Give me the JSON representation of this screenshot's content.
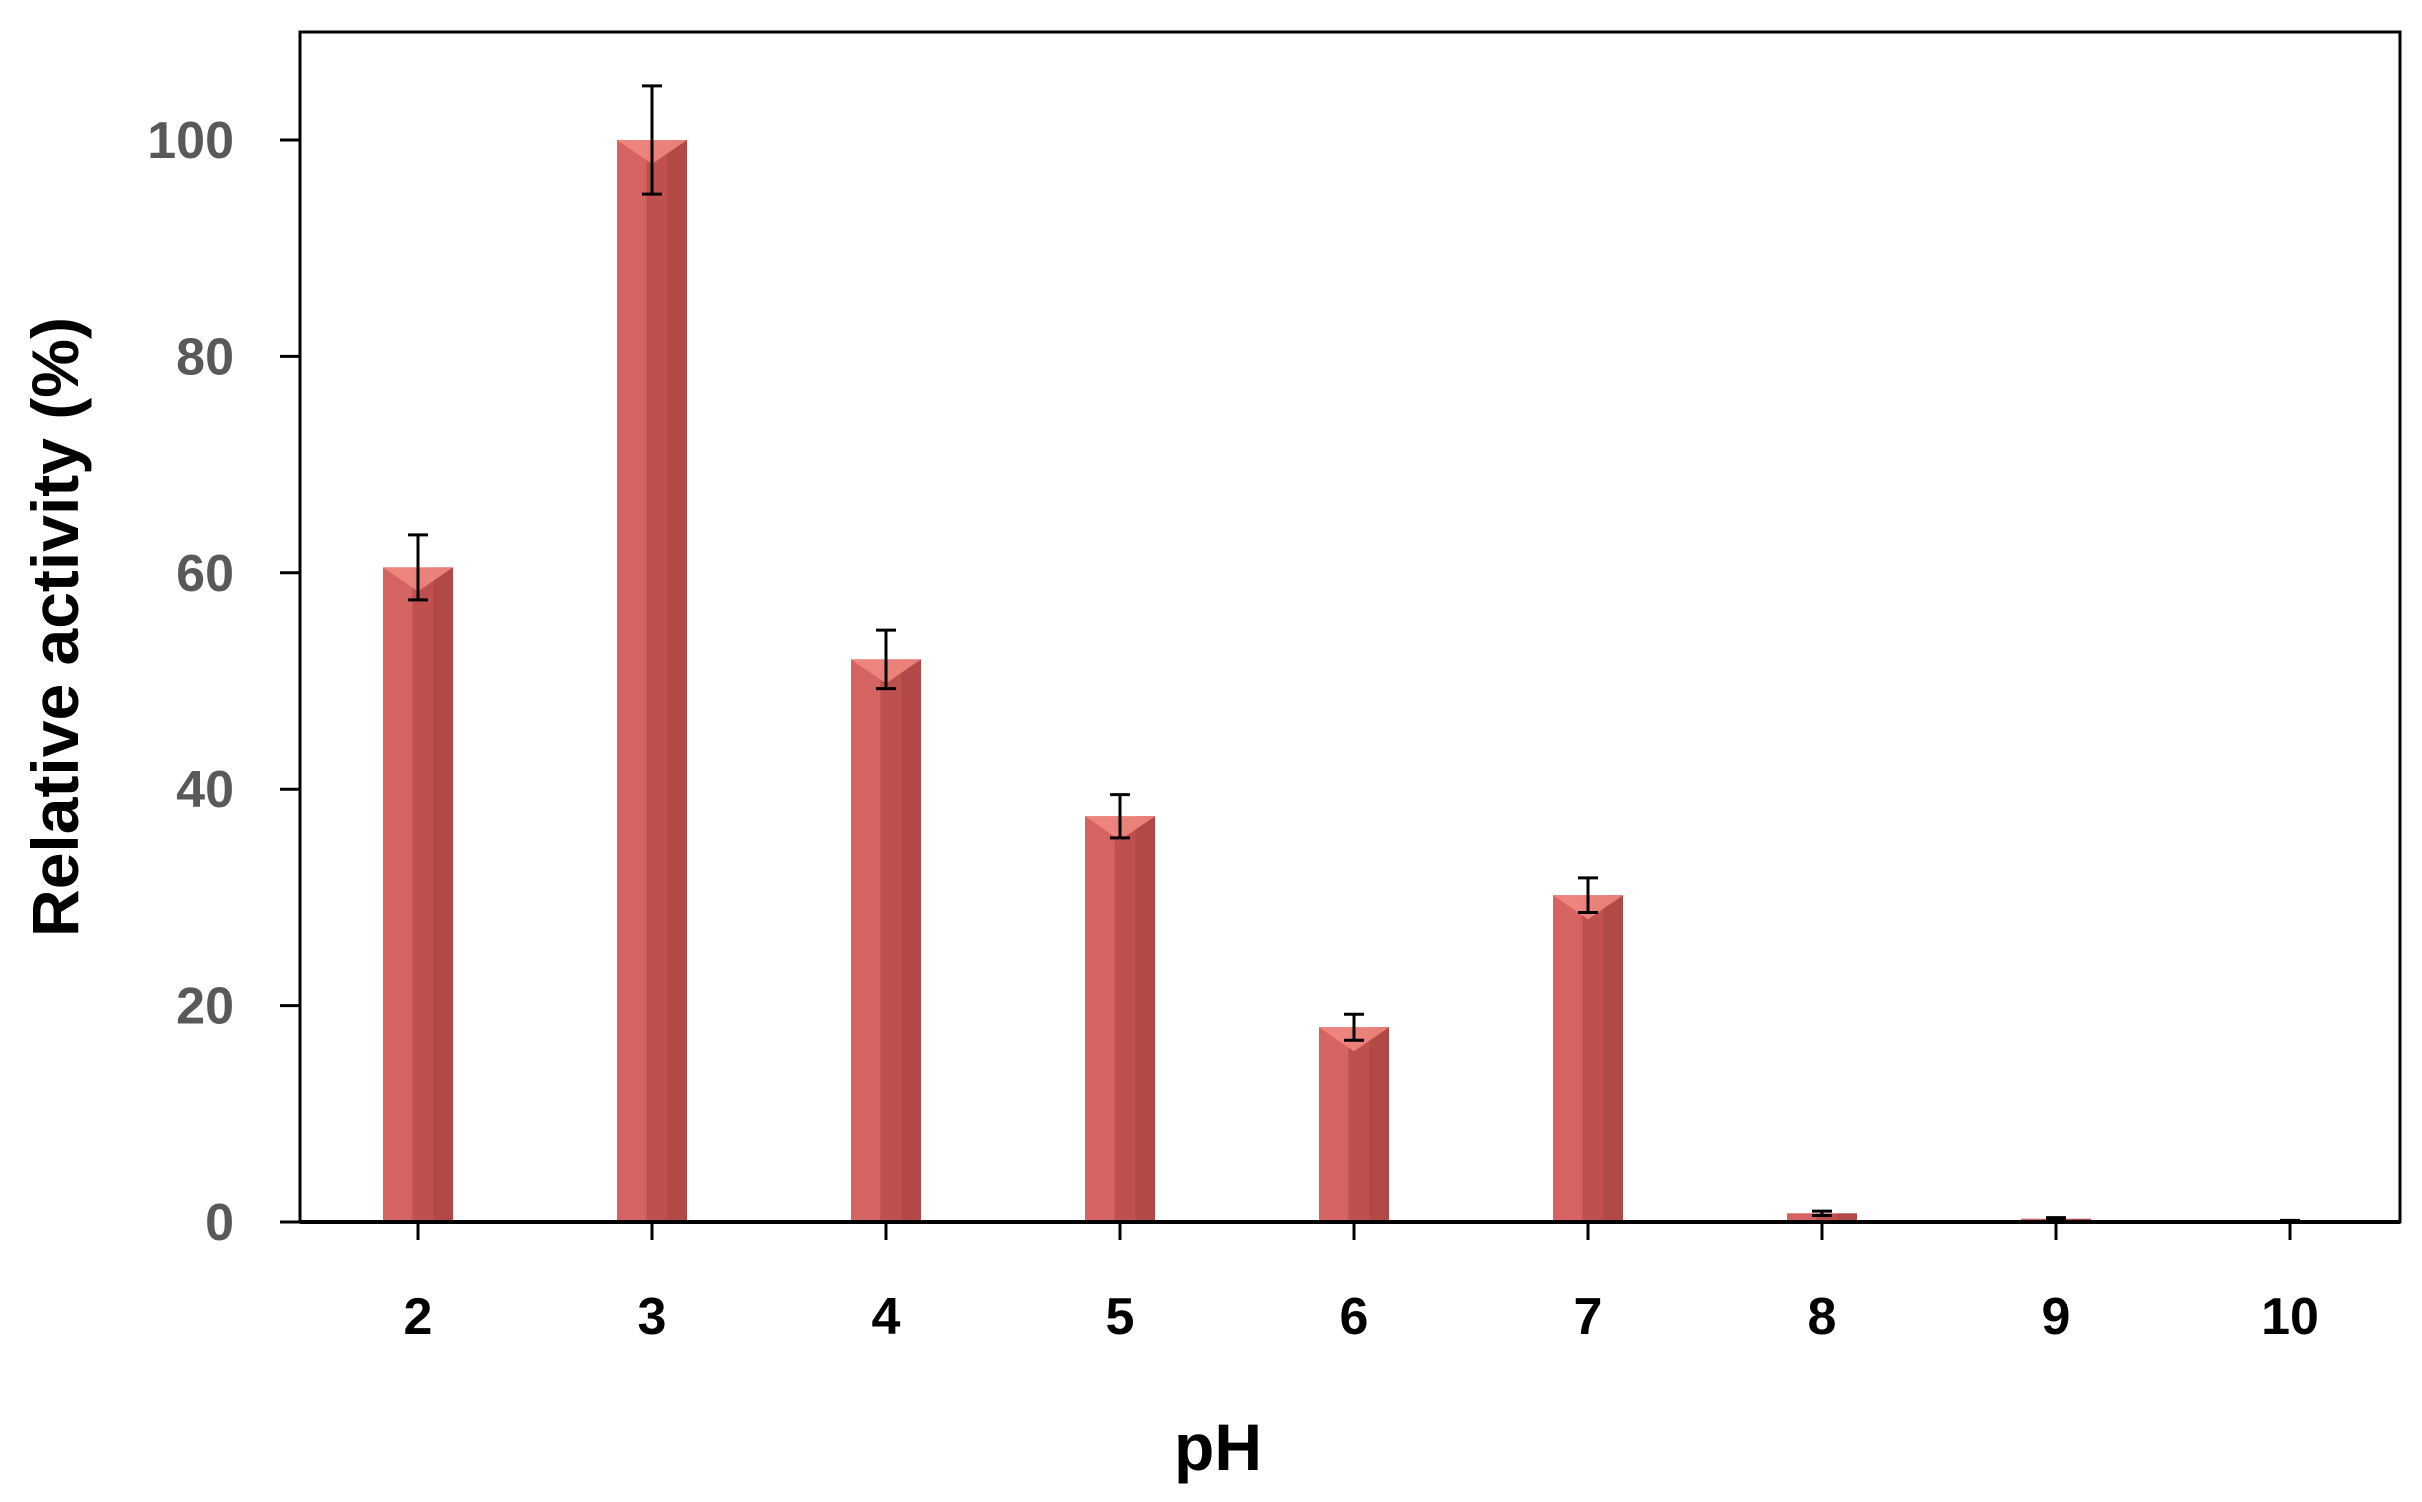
{
  "chart_data": {
    "type": "bar",
    "title": "",
    "xlabel": "pH",
    "ylabel": "Relative activity  (%)",
    "categories": [
      "2",
      "3",
      "4",
      "5",
      "6",
      "7",
      "8",
      "9",
      "10"
    ],
    "values": [
      60.5,
      100,
      52,
      37.5,
      18,
      30.2,
      0.8,
      0.3,
      0.1
    ],
    "errors": [
      3,
      5,
      2.7,
      2,
      1.2,
      1.6,
      0.2,
      0.1,
      0.05
    ],
    "ylim": [
      0,
      110
    ],
    "yticks": [
      0,
      20,
      40,
      60,
      80,
      100
    ],
    "grid": false,
    "legend": "none",
    "colors": {
      "bar": "#c0504d",
      "bar_light": "#e57373",
      "bar_dark": "#a94442",
      "bar_top": "#f28b82",
      "error_bar": "#000000",
      "axis": "#000000",
      "tick_label_y": "#595959"
    }
  }
}
